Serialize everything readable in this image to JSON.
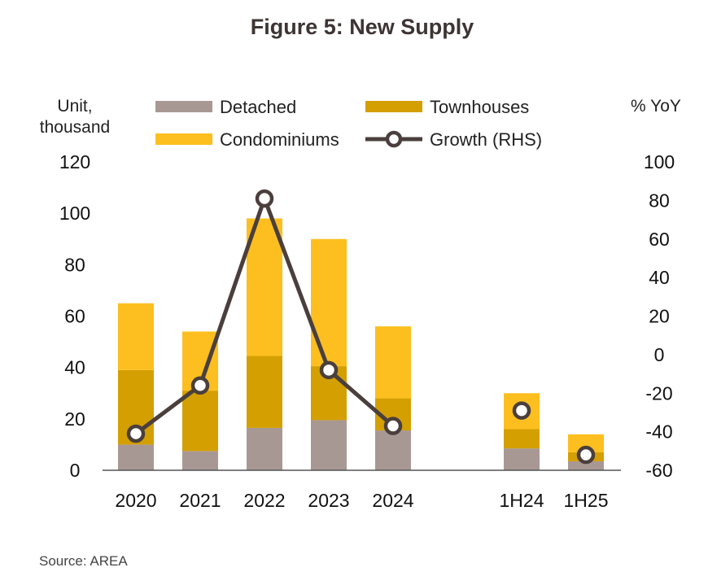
{
  "chart_data": {
    "type": "bar",
    "title": "Figure 5: New Supply",
    "ylabel_left": [
      "Unit,",
      "thousand"
    ],
    "ylabel_right": "% YoY",
    "categories": [
      "2020",
      "2021",
      "2022",
      "2023",
      "2024",
      "1H24",
      "1H25"
    ],
    "y_left": {
      "min": 0,
      "max": 120,
      "ticks": [
        0,
        20,
        40,
        60,
        80,
        100,
        120
      ]
    },
    "y_right": {
      "min": -60,
      "max": 100,
      "ticks": [
        -60,
        -40,
        -20,
        0,
        20,
        40,
        60,
        80,
        100
      ]
    },
    "stacked": true,
    "series": [
      {
        "name": "Detached",
        "color": "#a89893",
        "values": [
          10,
          7.5,
          16.5,
          19.5,
          15.5,
          8.5,
          3.5
        ]
      },
      {
        "name": "Townhouses",
        "color": "#d49f00",
        "values": [
          29,
          23.5,
          28,
          21,
          12.5,
          7.5,
          3.5
        ]
      },
      {
        "name": "Condominiums",
        "color": "#fdbf1f",
        "values": [
          26,
          23,
          53.5,
          49.5,
          28,
          14,
          7
        ]
      }
    ],
    "line_series": {
      "name": "Growth (RHS)",
      "axis": "right",
      "color": "#4a3f3c",
      "segments": [
        {
          "categories": [
            "2020",
            "2021",
            "2022",
            "2023",
            "2024"
          ],
          "values": [
            -41,
            -16,
            81,
            -8,
            -37
          ]
        },
        {
          "categories": [
            "1H24"
          ],
          "values": [
            -29
          ]
        },
        {
          "categories": [
            "1H25"
          ],
          "values": [
            -52
          ]
        }
      ]
    },
    "legend_position": "top"
  },
  "source": "Source: AREA"
}
